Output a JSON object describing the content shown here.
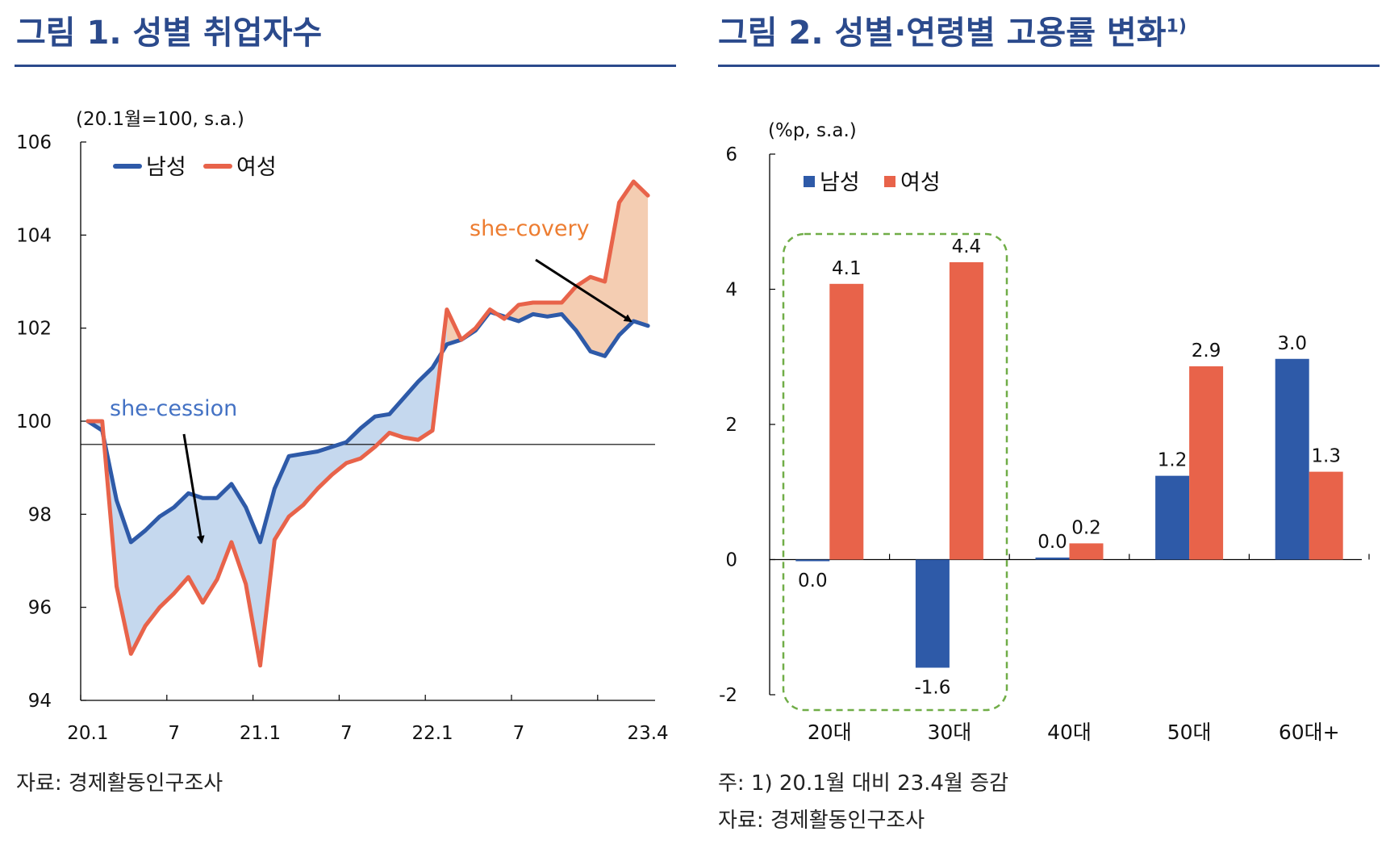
{
  "figure1": {
    "title": "그림 1. 성별 취업자수",
    "source": "자료: 경제활동인구조사"
  },
  "figure2": {
    "title": "그림 2. 성별·연령별 고용률 변화",
    "title_sup": "1)",
    "note": "주: 1) 20.1월 대비 23.4월 증감",
    "source": "자료: 경제활동인구조사"
  },
  "colors": {
    "male": "#2e5aa8",
    "female": "#e8634a",
    "she_cession_fill": "#c5d8ee",
    "she_covery_fill": "#f4cdb2",
    "she_cession_text": "#4472c4",
    "she_covery_text": "#ed7d31",
    "box": "#70ad47",
    "title": "#2b4a8c"
  },
  "chart_data": [
    {
      "type": "line",
      "unit_label": "(20.1월=100, s.a.)",
      "ylim": [
        94,
        106
      ],
      "yticks": [
        94,
        96,
        98,
        100,
        102,
        104,
        106
      ],
      "xtick_labels": [
        "20.1",
        "7",
        "21.1",
        "7",
        "22.1",
        "7",
        "23.4"
      ],
      "xtick_index": [
        0,
        6,
        12,
        18,
        24,
        30,
        39
      ],
      "x": [
        "20.1",
        "20.2",
        "20.3",
        "20.4",
        "20.5",
        "20.6",
        "20.7",
        "20.8",
        "20.9",
        "20.10",
        "20.11",
        "20.12",
        "21.1",
        "21.2",
        "21.3",
        "21.4",
        "21.5",
        "21.6",
        "21.7",
        "21.8",
        "21.9",
        "21.10",
        "21.11",
        "21.12",
        "22.1",
        "22.2",
        "22.3",
        "22.4",
        "22.5",
        "22.6",
        "22.7",
        "22.8",
        "22.9",
        "22.10",
        "22.11",
        "22.12",
        "23.1",
        "23.2",
        "23.3",
        "23.4"
      ],
      "series": [
        {
          "name": "남성",
          "values": [
            100,
            99.8,
            98.3,
            97.4,
            97.65,
            97.95,
            98.15,
            98.45,
            98.35,
            98.35,
            98.65,
            98.15,
            97.4,
            98.55,
            99.25,
            99.3,
            99.35,
            99.45,
            99.55,
            99.85,
            100.1,
            100.15,
            100.5,
            100.85,
            101.15,
            101.65,
            101.75,
            101.95,
            102.35,
            102.25,
            102.15,
            102.3,
            102.25,
            102.3,
            101.95,
            101.5,
            101.4,
            101.85,
            102.15,
            102.05
          ]
        },
        {
          "name": "여성",
          "values": [
            100,
            100,
            96.45,
            95.0,
            95.6,
            96.0,
            96.3,
            96.65,
            96.1,
            96.6,
            97.4,
            96.5,
            94.75,
            97.45,
            97.95,
            98.2,
            98.55,
            98.85,
            99.1,
            99.2,
            99.45,
            99.75,
            99.65,
            99.6,
            99.8,
            102.4,
            101.75,
            102.0,
            102.4,
            102.2,
            102.5,
            102.55,
            102.55,
            102.55,
            102.9,
            103.1,
            103.0,
            104.7,
            105.15,
            104.85
          ]
        }
      ],
      "reference_line": 99.5,
      "annotations": [
        "she-cession",
        "she-covery"
      ],
      "legend_position": "top-left",
      "grid": false
    },
    {
      "type": "bar",
      "unit_label": "(%p, s.a.)",
      "categories": [
        "20대",
        "30대",
        "40대",
        "50대",
        "60대+"
      ],
      "ylim": [
        -2,
        6
      ],
      "yticks": [
        -2,
        0,
        2,
        4,
        6
      ],
      "series": [
        {
          "name": "남성",
          "values": [
            0.0,
            -1.6,
            0.0,
            1.2,
            3.0
          ]
        },
        {
          "name": "여성",
          "values": [
            4.1,
            4.4,
            0.2,
            2.9,
            1.3
          ]
        }
      ],
      "value_labels": {
        "남성": [
          "0.0",
          "-1.6",
          "0.0",
          "1.2",
          "3.0"
        ],
        "여성": [
          "4.1",
          "4.4",
          "0.2",
          "2.9",
          "1.3"
        ]
      },
      "draw_values": {
        "남성": [
          -0.02,
          -1.6,
          0.03,
          1.24,
          2.97
        ],
        "여성": [
          4.08,
          4.4,
          0.24,
          2.86,
          1.3
        ]
      },
      "highlight_categories": [
        "20대",
        "30대"
      ],
      "legend_position": "top-left",
      "grid": false
    }
  ]
}
